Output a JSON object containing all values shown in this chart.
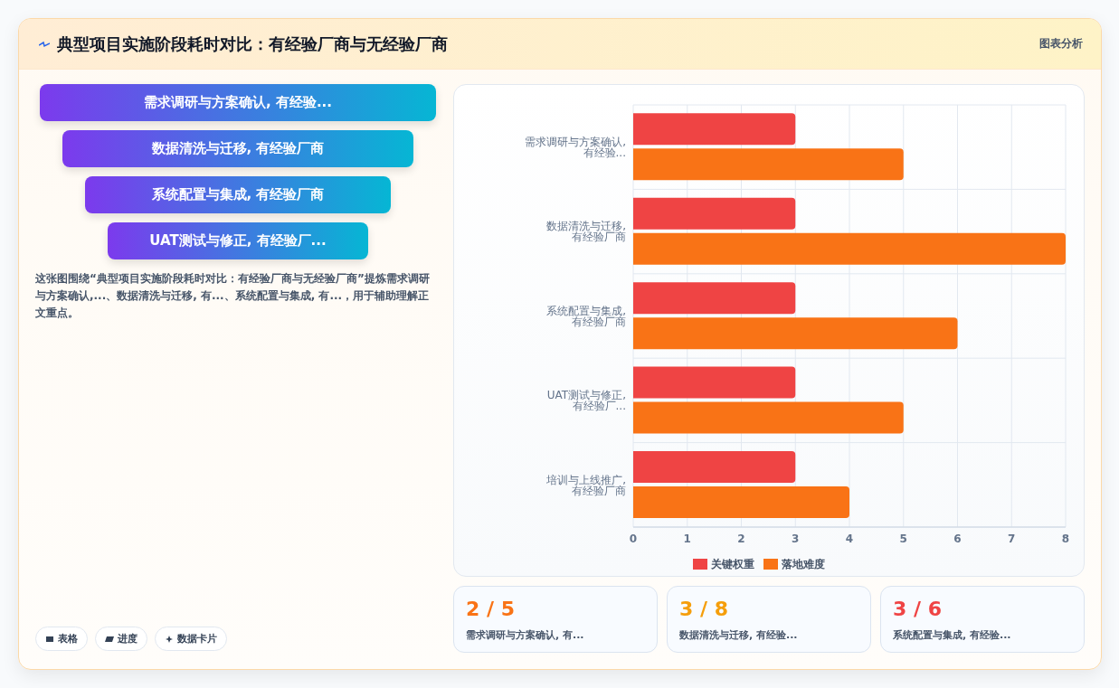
{
  "chart_data": {
    "type": "bar",
    "orientation": "horizontal",
    "title": "典型项目实施阶段耗时对比：有经验厂商与无经验厂商",
    "categories": [
      "需求调研与方案确认, 有经验...",
      "数据清洗与迁移, 有经验厂商",
      "系统配置与集成, 有经验厂商",
      "UAT测试与修正, 有经验厂...",
      "培训与上线推广, 有经验厂商"
    ],
    "series": [
      {
        "name": "关键权重",
        "color": "#ef4444",
        "values": [
          3,
          3,
          3,
          3,
          3
        ]
      },
      {
        "name": "落地难度",
        "color": "#f97316",
        "values": [
          5,
          8,
          6,
          5,
          4
        ]
      }
    ],
    "xlim": [
      0,
      8
    ],
    "xticks": [
      0,
      1,
      2,
      3,
      4,
      5,
      6,
      7,
      8
    ],
    "grid": true,
    "legend": "bottom",
    "annotations": [
      "图表分析",
      "需求调研与方案确认, 有经验...",
      "数据清洗与迁移, 有经验厂商",
      "系统配置与集成, 有经验厂商",
      "UAT测试与修正, 有经验厂...",
      "这张图围绕“典型项目实施阶段耗时对比：有经验厂商与无经验厂商”提炼需求调研与方案确认,...、数据清洗与迁移, 有...、系统配置与集成, 有...，用于辅助理解正文重点。",
      "表格",
      "进度",
      "数据卡片",
      "2 / 5",
      "需求调研与方案确认, 有...",
      "3 / 8",
      "数据清洗与迁移, 有经验...",
      "3 / 6",
      "系统配置与集成, 有经验..."
    ]
  }
}
